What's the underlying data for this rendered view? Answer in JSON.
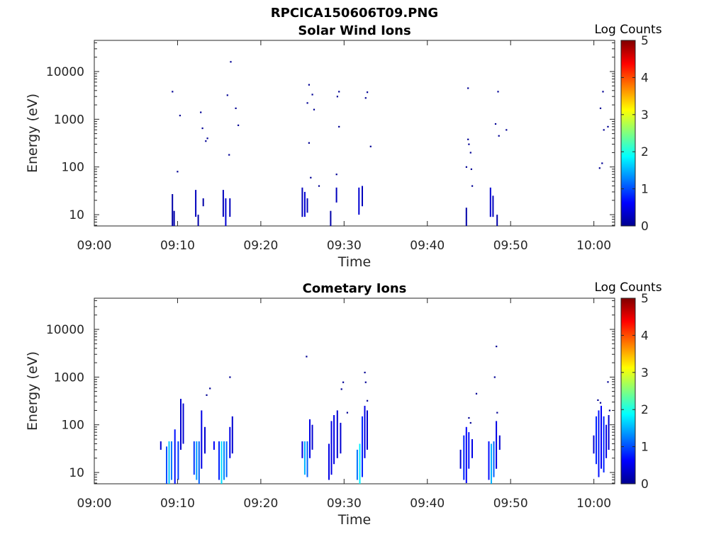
{
  "figure": {
    "title": "RPCICA150606T09.PNG"
  },
  "colorscale": {
    "label": "Log Counts",
    "min": 0,
    "max": 5,
    "ticks": [
      "0",
      "1",
      "2",
      "3",
      "4",
      "5"
    ]
  },
  "chart_data": [
    {
      "type": "heatmap",
      "title": "Solar Wind Ions",
      "xlabel": "Time",
      "ylabel": "Energy (eV)",
      "x_ticks": [
        "09:00",
        "09:10",
        "09:20",
        "09:30",
        "09:40",
        "09:50",
        "10:00"
      ],
      "x_tick_minutes": [
        0,
        10,
        20,
        30,
        40,
        50,
        60
      ],
      "xlim_minutes": [
        0,
        62.5
      ],
      "y_scale": "log",
      "ylim": [
        5.8,
        45000
      ],
      "y_ticks": [
        "10",
        "100",
        "1000",
        "10000"
      ],
      "y_tick_values": [
        10,
        100,
        1000,
        10000
      ],
      "grid": false,
      "colorbar": "Log Counts",
      "cell_width_minutes": 0.17,
      "columns": [
        {
          "t": 9.3,
          "e_min": 5.8,
          "e_max": 27,
          "level": 0.2
        },
        {
          "t": 9.5,
          "e_min": 5.8,
          "e_max": 12,
          "level": 0.2
        },
        {
          "t": 12.1,
          "e_min": 9,
          "e_max": 33,
          "level": 0.3
        },
        {
          "t": 12.4,
          "e_min": 5.8,
          "e_max": 10,
          "level": 0.2
        },
        {
          "t": 13.0,
          "e_min": 15,
          "e_max": 22,
          "level": 0.2
        },
        {
          "t": 15.4,
          "e_min": 9,
          "e_max": 33,
          "level": 0.3
        },
        {
          "t": 15.7,
          "e_min": 5.8,
          "e_max": 22,
          "level": 0.4
        },
        {
          "t": 16.2,
          "e_min": 9,
          "e_max": 22,
          "level": 0.3
        },
        {
          "t": 24.9,
          "e_min": 9,
          "e_max": 37,
          "level": 0.3
        },
        {
          "t": 25.2,
          "e_min": 9,
          "e_max": 30,
          "level": 0.4
        },
        {
          "t": 25.5,
          "e_min": 11,
          "e_max": 22,
          "level": 0.3
        },
        {
          "t": 28.3,
          "e_min": 5.8,
          "e_max": 12,
          "level": 0.2
        },
        {
          "t": 29.0,
          "e_min": 18,
          "e_max": 37,
          "level": 0.3
        },
        {
          "t": 31.7,
          "e_min": 10,
          "e_max": 37,
          "level": 0.4
        },
        {
          "t": 32.1,
          "e_min": 15,
          "e_max": 40,
          "level": 0.3
        },
        {
          "t": 44.6,
          "e_min": 5.8,
          "e_max": 14,
          "level": 0.2
        },
        {
          "t": 47.5,
          "e_min": 9,
          "e_max": 37,
          "level": 0.4
        },
        {
          "t": 47.8,
          "e_min": 9,
          "e_max": 25,
          "level": 0.3
        },
        {
          "t": 48.3,
          "e_min": 5.8,
          "e_max": 10,
          "level": 0.2
        }
      ],
      "dots": [
        {
          "t": 9.3,
          "e": 3800,
          "level": 0.1
        },
        {
          "t": 9.9,
          "e": 80,
          "level": 0.1
        },
        {
          "t": 10.2,
          "e": 1200,
          "level": 0.1
        },
        {
          "t": 12.7,
          "e": 1400,
          "level": 0.1
        },
        {
          "t": 12.9,
          "e": 650,
          "level": 0.1
        },
        {
          "t": 13.3,
          "e": 350,
          "level": 0.1
        },
        {
          "t": 13.5,
          "e": 400,
          "level": 0.1
        },
        {
          "t": 15.9,
          "e": 3200,
          "level": 0.1
        },
        {
          "t": 16.1,
          "e": 180,
          "level": 0.1
        },
        {
          "t": 16.3,
          "e": 16000,
          "level": 0.1
        },
        {
          "t": 16.9,
          "e": 1700,
          "level": 0.1
        },
        {
          "t": 17.2,
          "e": 750,
          "level": 0.1
        },
        {
          "t": 25.5,
          "e": 2200,
          "level": 0.1
        },
        {
          "t": 25.7,
          "e": 5300,
          "level": 0.1
        },
        {
          "t": 25.7,
          "e": 320,
          "level": 0.1
        },
        {
          "t": 25.9,
          "e": 60,
          "level": 0.1
        },
        {
          "t": 26.1,
          "e": 3300,
          "level": 0.1
        },
        {
          "t": 26.3,
          "e": 1600,
          "level": 0.1
        },
        {
          "t": 26.9,
          "e": 40,
          "level": 0.1
        },
        {
          "t": 29.0,
          "e": 70,
          "level": 0.1
        },
        {
          "t": 29.1,
          "e": 3000,
          "level": 0.1
        },
        {
          "t": 29.3,
          "e": 3800,
          "level": 0.1
        },
        {
          "t": 29.3,
          "e": 700,
          "level": 0.1
        },
        {
          "t": 32.5,
          "e": 2800,
          "level": 0.1
        },
        {
          "t": 32.7,
          "e": 3700,
          "level": 0.1
        },
        {
          "t": 33.1,
          "e": 270,
          "level": 0.1
        },
        {
          "t": 44.6,
          "e": 100,
          "level": 0.1
        },
        {
          "t": 44.8,
          "e": 4500,
          "level": 0.1
        },
        {
          "t": 44.8,
          "e": 380,
          "level": 0.1
        },
        {
          "t": 44.9,
          "e": 300,
          "level": 0.1
        },
        {
          "t": 45.1,
          "e": 200,
          "level": 0.1
        },
        {
          "t": 45.2,
          "e": 90,
          "level": 0.1
        },
        {
          "t": 45.3,
          "e": 40,
          "level": 0.1
        },
        {
          "t": 48.1,
          "e": 800,
          "level": 0.1
        },
        {
          "t": 48.4,
          "e": 3800,
          "level": 0.1
        },
        {
          "t": 48.5,
          "e": 450,
          "level": 0.1
        },
        {
          "t": 49.4,
          "e": 600,
          "level": 0.1
        },
        {
          "t": 60.6,
          "e": 95,
          "level": 0.1
        },
        {
          "t": 60.7,
          "e": 1700,
          "level": 0.1
        },
        {
          "t": 60.9,
          "e": 120,
          "level": 0.1
        },
        {
          "t": 61.0,
          "e": 3800,
          "level": 0.1
        },
        {
          "t": 61.1,
          "e": 600,
          "level": 0.1
        },
        {
          "t": 61.6,
          "e": 700,
          "level": 0.1
        }
      ]
    },
    {
      "type": "heatmap",
      "title": "Cometary Ions",
      "xlabel": "Time",
      "ylabel": "Energy (eV)",
      "x_ticks": [
        "09:00",
        "09:10",
        "09:20",
        "09:30",
        "09:40",
        "09:50",
        "10:00"
      ],
      "x_tick_minutes": [
        0,
        10,
        20,
        30,
        40,
        50,
        60
      ],
      "xlim_minutes": [
        0,
        62.5
      ],
      "y_scale": "log",
      "ylim": [
        5.8,
        45000
      ],
      "y_ticks": [
        "10",
        "100",
        "1000",
        "10000"
      ],
      "y_tick_values": [
        10,
        100,
        1000,
        10000
      ],
      "grid": false,
      "colorbar": "Log Counts",
      "cell_width_minutes": 0.17,
      "columns": [
        {
          "t": 7.9,
          "e_min": 30,
          "e_max": 45,
          "level": 0.4
        },
        {
          "t": 8.6,
          "e_min": 5.8,
          "e_max": 35,
          "level": 1.0
        },
        {
          "t": 8.9,
          "e_min": 5.8,
          "e_max": 45,
          "level": 1.6
        },
        {
          "t": 9.2,
          "e_min": 7,
          "e_max": 45,
          "level": 1.2
        },
        {
          "t": 9.6,
          "e_min": 5.8,
          "e_max": 80,
          "level": 0.7
        },
        {
          "t": 10.0,
          "e_min": 7,
          "e_max": 45,
          "level": 0.9
        },
        {
          "t": 10.3,
          "e_min": 30,
          "e_max": 350,
          "level": 0.4
        },
        {
          "t": 10.6,
          "e_min": 40,
          "e_max": 280,
          "level": 0.4
        },
        {
          "t": 11.9,
          "e_min": 9,
          "e_max": 45,
          "level": 0.9
        },
        {
          "t": 12.2,
          "e_min": 7,
          "e_max": 45,
          "level": 1.4
        },
        {
          "t": 12.5,
          "e_min": 5.8,
          "e_max": 45,
          "level": 1.1
        },
        {
          "t": 12.8,
          "e_min": 12,
          "e_max": 200,
          "level": 0.5
        },
        {
          "t": 13.2,
          "e_min": 25,
          "e_max": 90,
          "level": 0.4
        },
        {
          "t": 14.3,
          "e_min": 30,
          "e_max": 45,
          "level": 0.6
        },
        {
          "t": 14.9,
          "e_min": 7,
          "e_max": 45,
          "level": 0.8
        },
        {
          "t": 15.2,
          "e_min": 5.8,
          "e_max": 45,
          "level": 1.7
        },
        {
          "t": 15.5,
          "e_min": 7,
          "e_max": 45,
          "level": 1.3
        },
        {
          "t": 15.8,
          "e_min": 8,
          "e_max": 45,
          "level": 1.1
        },
        {
          "t": 16.2,
          "e_min": 20,
          "e_max": 90,
          "level": 0.5
        },
        {
          "t": 16.5,
          "e_min": 25,
          "e_max": 150,
          "level": 0.4
        },
        {
          "t": 24.9,
          "e_min": 20,
          "e_max": 45,
          "level": 0.5
        },
        {
          "t": 25.2,
          "e_min": 9,
          "e_max": 45,
          "level": 1.5
        },
        {
          "t": 25.5,
          "e_min": 8,
          "e_max": 45,
          "level": 1.1
        },
        {
          "t": 25.8,
          "e_min": 20,
          "e_max": 130,
          "level": 0.5
        },
        {
          "t": 26.1,
          "e_min": 30,
          "e_max": 100,
          "level": 0.4
        },
        {
          "t": 28.1,
          "e_min": 7,
          "e_max": 40,
          "level": 0.5
        },
        {
          "t": 28.4,
          "e_min": 9,
          "e_max": 120,
          "level": 0.5
        },
        {
          "t": 28.7,
          "e_min": 15,
          "e_max": 160,
          "level": 0.5
        },
        {
          "t": 29.1,
          "e_min": 20,
          "e_max": 200,
          "level": 0.4
        },
        {
          "t": 29.5,
          "e_min": 25,
          "e_max": 110,
          "level": 0.4
        },
        {
          "t": 31.5,
          "e_min": 7,
          "e_max": 30,
          "level": 1.2
        },
        {
          "t": 31.8,
          "e_min": 5.8,
          "e_max": 40,
          "level": 1.8
        },
        {
          "t": 32.1,
          "e_min": 8,
          "e_max": 150,
          "level": 0.8
        },
        {
          "t": 32.4,
          "e_min": 20,
          "e_max": 250,
          "level": 0.5
        },
        {
          "t": 32.7,
          "e_min": 30,
          "e_max": 200,
          "level": 0.4
        },
        {
          "t": 43.9,
          "e_min": 12,
          "e_max": 30,
          "level": 0.4
        },
        {
          "t": 44.3,
          "e_min": 7,
          "e_max": 60,
          "level": 0.8
        },
        {
          "t": 44.6,
          "e_min": 6,
          "e_max": 90,
          "level": 0.6
        },
        {
          "t": 44.9,
          "e_min": 12,
          "e_max": 70,
          "level": 0.7
        },
        {
          "t": 45.3,
          "e_min": 20,
          "e_max": 50,
          "level": 0.5
        },
        {
          "t": 47.3,
          "e_min": 7,
          "e_max": 45,
          "level": 0.7
        },
        {
          "t": 47.6,
          "e_min": 5.8,
          "e_max": 40,
          "level": 1.5
        },
        {
          "t": 47.9,
          "e_min": 8,
          "e_max": 45,
          "level": 1.1
        },
        {
          "t": 48.2,
          "e_min": 12,
          "e_max": 120,
          "level": 0.5
        },
        {
          "t": 48.6,
          "e_min": 30,
          "e_max": 60,
          "level": 0.4
        },
        {
          "t": 59.9,
          "e_min": 25,
          "e_max": 60,
          "level": 0.4
        },
        {
          "t": 60.2,
          "e_min": 15,
          "e_max": 150,
          "level": 0.8
        },
        {
          "t": 60.5,
          "e_min": 8,
          "e_max": 200,
          "level": 0.7
        },
        {
          "t": 60.8,
          "e_min": 12,
          "e_max": 250,
          "level": 0.6
        },
        {
          "t": 61.1,
          "e_min": 10,
          "e_max": 150,
          "level": 0.8
        },
        {
          "t": 61.4,
          "e_min": 20,
          "e_max": 100,
          "level": 0.5
        },
        {
          "t": 61.7,
          "e_min": 30,
          "e_max": 160,
          "level": 0.4
        }
      ],
      "dots": [
        {
          "t": 13.4,
          "e": 420,
          "level": 0.1
        },
        {
          "t": 13.8,
          "e": 580,
          "level": 0.1
        },
        {
          "t": 16.2,
          "e": 1000,
          "level": 0.1
        },
        {
          "t": 25.4,
          "e": 2700,
          "level": 0.1
        },
        {
          "t": 29.6,
          "e": 560,
          "level": 0.1
        },
        {
          "t": 29.8,
          "e": 780,
          "level": 0.1
        },
        {
          "t": 30.3,
          "e": 180,
          "level": 0.1
        },
        {
          "t": 32.4,
          "e": 1250,
          "level": 0.1
        },
        {
          "t": 32.5,
          "e": 780,
          "level": 0.1
        },
        {
          "t": 32.7,
          "e": 320,
          "level": 0.1
        },
        {
          "t": 44.9,
          "e": 140,
          "level": 0.1
        },
        {
          "t": 45.1,
          "e": 110,
          "level": 0.1
        },
        {
          "t": 45.8,
          "e": 450,
          "level": 0.1
        },
        {
          "t": 48.0,
          "e": 1000,
          "level": 0.1
        },
        {
          "t": 48.2,
          "e": 4400,
          "level": 0.1
        },
        {
          "t": 48.3,
          "e": 180,
          "level": 0.1
        },
        {
          "t": 60.4,
          "e": 330,
          "level": 0.1
        },
        {
          "t": 60.7,
          "e": 290,
          "level": 0.1
        },
        {
          "t": 61.6,
          "e": 790,
          "level": 0.1
        },
        {
          "t": 61.8,
          "e": 200,
          "level": 0.1
        }
      ]
    }
  ]
}
